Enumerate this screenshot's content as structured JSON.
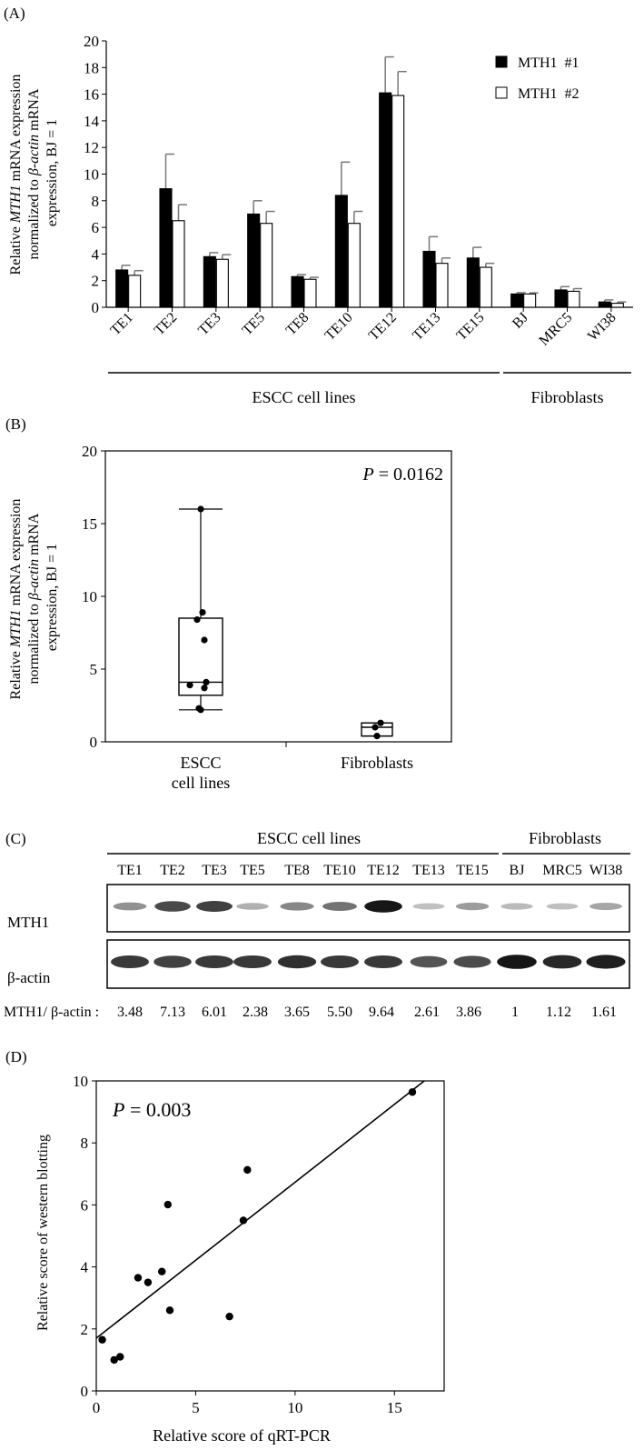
{
  "chart_data": [
    {
      "panel": "(A)",
      "type": "bar",
      "ylabel_parts": [
        "Relative ",
        "MTH1",
        " mRNA expression",
        "normalized to ",
        "β-actin",
        " mRNA",
        "expression, BJ = 1"
      ],
      "ylim": [
        0,
        20
      ],
      "yticks": [
        "0",
        "2",
        "4",
        "6",
        "8",
        "10",
        "12",
        "14",
        "16",
        "18",
        "20"
      ],
      "categories": [
        "TE1",
        "TE2",
        "TE3",
        "TE5",
        "TE8",
        "TE10",
        "TE12",
        "TE13",
        "TE15",
        "BJ",
        "MRC5",
        "WI38"
      ],
      "series": [
        {
          "name": "MTH1  #1",
          "fill": "#000000",
          "values": [
            2.8,
            8.9,
            3.8,
            7.0,
            2.3,
            8.4,
            16.1,
            4.2,
            3.7,
            1.0,
            1.3,
            0.4
          ],
          "errors": [
            0.35,
            2.6,
            0.3,
            1.0,
            0.15,
            2.5,
            2.7,
            1.1,
            0.8,
            0.1,
            0.25,
            0.15
          ]
        },
        {
          "name": "MTH1  #2",
          "fill": "#ffffff",
          "values": [
            2.4,
            6.5,
            3.6,
            6.3,
            2.1,
            6.3,
            15.9,
            3.3,
            3.0,
            1.0,
            1.2,
            0.3
          ],
          "errors": [
            0.35,
            1.2,
            0.35,
            0.9,
            0.15,
            0.9,
            1.8,
            0.4,
            0.3,
            0.08,
            0.2,
            0.1
          ]
        }
      ],
      "groups": [
        {
          "label": "ESCC cell lines",
          "from": "TE1",
          "to": "TE15"
        },
        {
          "label": "Fibroblasts",
          "from": "BJ",
          "to": "WI38"
        }
      ],
      "legend": "top-right"
    },
    {
      "panel": "(B)",
      "type": "box",
      "ylabel_parts": [
        "Relative ",
        "MTH1",
        " mRNA expression",
        "normalized to ",
        "β-actin",
        " mRNA",
        "expression, BJ = 1"
      ],
      "ylim": [
        0,
        20
      ],
      "yticks": [
        "0",
        "5",
        "10",
        "15",
        "20"
      ],
      "p_label": "P",
      "p_value": " = 0.0162",
      "groups": [
        {
          "label_lines": [
            "ESCC",
            "cell lines"
          ],
          "whisker_low": 2.2,
          "q1": 3.2,
          "median": 4.1,
          "q3": 8.5,
          "whisker_high": 16.0,
          "points": [
            2.2,
            2.3,
            3.7,
            3.9,
            4.1,
            7.0,
            8.4,
            8.9,
            16.0
          ]
        },
        {
          "label_lines": [
            "Fibroblasts"
          ],
          "whisker_low": 0.4,
          "q1": 0.4,
          "median": 1.0,
          "q3": 1.3,
          "whisker_high": 1.3,
          "points": [
            0.4,
            1.0,
            1.3
          ]
        }
      ]
    },
    {
      "panel": "(C)",
      "type": "table",
      "group_labels": [
        "ESCC cell lines",
        "Fibroblasts"
      ],
      "lanes": [
        "TE1",
        "TE2",
        "TE3",
        "TE5",
        "TE8",
        "TE10",
        "TE12",
        "TE13",
        "TE15",
        "BJ",
        "MRC5",
        "WI38"
      ],
      "rows": [
        "MTH1",
        "β-actin"
      ],
      "mth1_intensity": [
        0.35,
        0.7,
        0.75,
        0.2,
        0.4,
        0.5,
        0.95,
        0.12,
        0.3,
        0.15,
        0.12,
        0.25
      ],
      "actin_intensity": [
        0.75,
        0.7,
        0.75,
        0.75,
        0.8,
        0.75,
        0.75,
        0.6,
        0.65,
        0.95,
        0.85,
        0.9
      ],
      "ratio_label": "MTH1/ β-actin :",
      "ratios": [
        "3.48",
        "7.13",
        "6.01",
        "2.38",
        "3.65",
        "5.50",
        "9.64",
        "2.61",
        "3.86",
        "1",
        "1.12",
        "1.61"
      ]
    },
    {
      "panel": "(D)",
      "type": "scatter",
      "xlabel": "Relative score of qRT-PCR",
      "ylabel": "Relative score of western blotting",
      "xlim": [
        0,
        17.5
      ],
      "ylim": [
        0,
        10
      ],
      "xticks": [
        "0",
        "5",
        "10",
        "15"
      ],
      "yticks": [
        "0",
        "2",
        "4",
        "6",
        "8",
        "10"
      ],
      "p_label": "P",
      "p_value": " = 0.003",
      "points": [
        {
          "x": 0.3,
          "y": 1.65
        },
        {
          "x": 0.9,
          "y": 1.0
        },
        {
          "x": 1.2,
          "y": 1.1
        },
        {
          "x": 2.1,
          "y": 3.65
        },
        {
          "x": 2.6,
          "y": 3.5
        },
        {
          "x": 3.3,
          "y": 3.85
        },
        {
          "x": 3.6,
          "y": 6.01
        },
        {
          "x": 3.7,
          "y": 2.6
        },
        {
          "x": 6.7,
          "y": 2.4
        },
        {
          "x": 7.4,
          "y": 5.5
        },
        {
          "x": 7.6,
          "y": 7.13
        },
        {
          "x": 15.9,
          "y": 9.64
        }
      ],
      "fit_line": {
        "x": [
          0,
          16.5
        ],
        "y": [
          1.7,
          10.0
        ]
      }
    }
  ]
}
